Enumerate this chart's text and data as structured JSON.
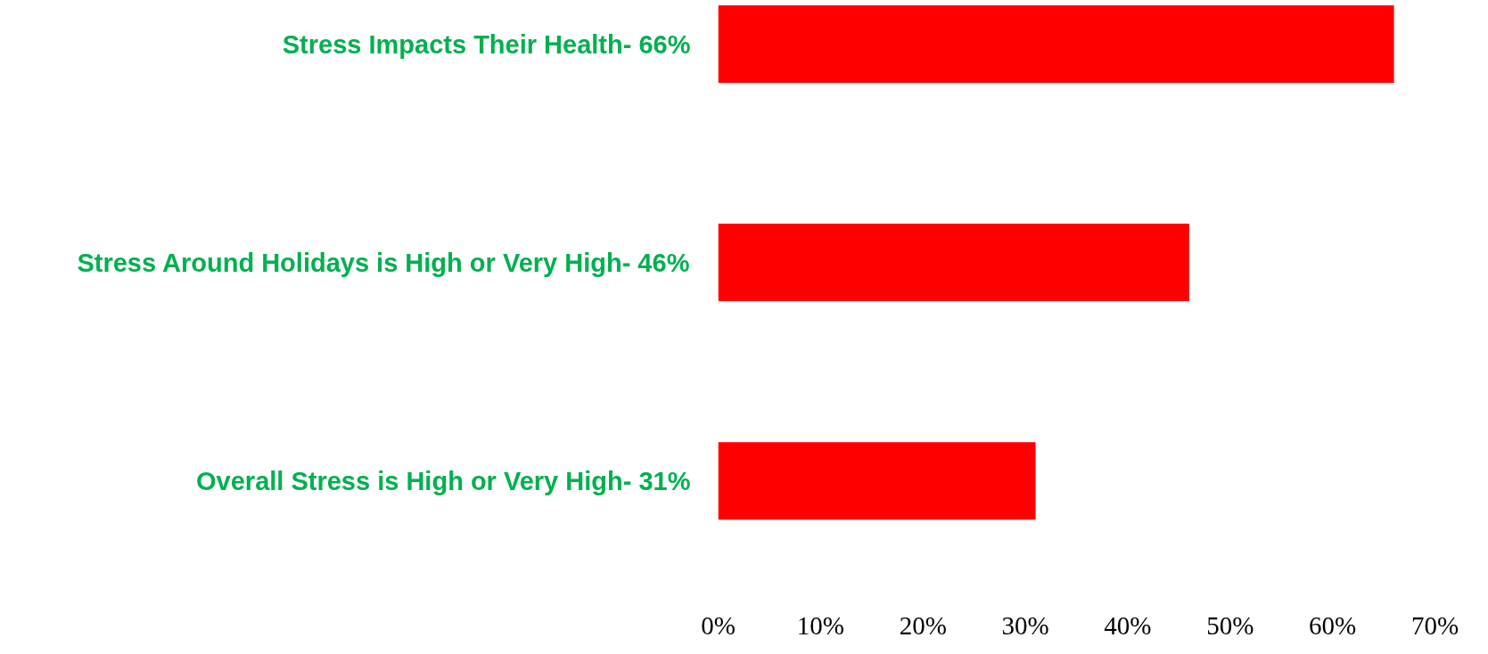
{
  "chart_data": {
    "type": "bar",
    "orientation": "horizontal",
    "categories": [
      "Stress Impacts Their Health- 66%",
      "Stress Around Holidays is High or Very High- 46%",
      "Overall Stress is High or Very High- 31%"
    ],
    "values": [
      66,
      46,
      31
    ],
    "color": "#ff0000",
    "xlim": [
      0,
      70
    ],
    "xticks": [
      {
        "value": 0,
        "label": "0%"
      },
      {
        "value": 10,
        "label": "10%"
      },
      {
        "value": 20,
        "label": "20%"
      },
      {
        "value": 30,
        "label": "30%"
      },
      {
        "value": 40,
        "label": "40%"
      },
      {
        "value": 50,
        "label": "50%"
      },
      {
        "value": 60,
        "label": "60%"
      },
      {
        "value": 70,
        "label": "70%"
      }
    ],
    "grid": false
  }
}
